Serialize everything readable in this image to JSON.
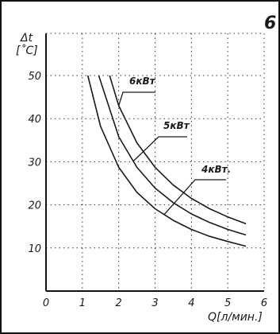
{
  "panel_number": "6",
  "chart_data": {
    "type": "line",
    "xlabel": "Q[л/мин.]",
    "ylabel_symbol": "Δt",
    "ylabel_unit": "[˚C]",
    "xlim": [
      0,
      6
    ],
    "ylim": [
      0,
      55
    ],
    "x_ticks": [
      0,
      1,
      2,
      3,
      4,
      5,
      6
    ],
    "y_ticks": [
      10,
      20,
      30,
      40,
      50
    ],
    "grid": true,
    "series": [
      {
        "name": "6кВт",
        "x": [
          1.75,
          2.0,
          2.5,
          3.0,
          3.5,
          4.0,
          4.5,
          5.0,
          5.5
        ],
        "y": [
          50,
          43,
          34.4,
          28.7,
          24.6,
          21.5,
          19.1,
          17.2,
          15.6
        ]
      },
      {
        "name": "5кВт",
        "x": [
          1.45,
          2.0,
          2.5,
          3.0,
          3.5,
          4.0,
          4.5,
          5.0,
          5.5
        ],
        "y": [
          50,
          35.8,
          28.7,
          23.9,
          20.5,
          17.9,
          15.9,
          14.3,
          13.0
        ]
      },
      {
        "name": "4кВт.",
        "x": [
          1.15,
          1.5,
          2.0,
          2.5,
          3.0,
          3.5,
          4.0,
          4.5,
          5.0,
          5.5
        ],
        "y": [
          50,
          38.2,
          28.7,
          22.9,
          19.1,
          16.4,
          14.3,
          12.7,
          11.5,
          10.4
        ]
      }
    ],
    "annotations": [
      {
        "text": "6кВт",
        "series": "6кВт",
        "at_x": 2.0
      },
      {
        "text": "5кВт",
        "series": "5кВт",
        "at_x": 2.4
      },
      {
        "text": "4кВт.",
        "series": "4кВт.",
        "at_x": 3.25
      }
    ]
  }
}
